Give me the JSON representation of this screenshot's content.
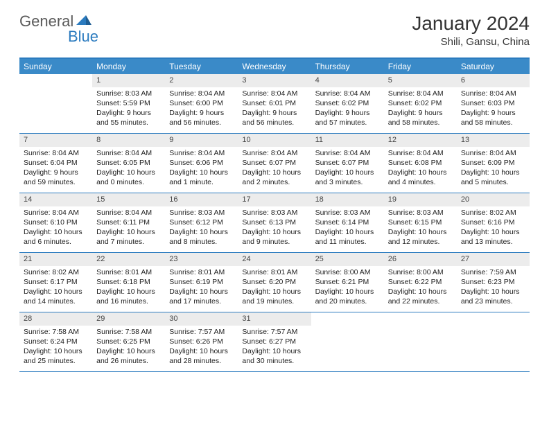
{
  "logo": {
    "general": "General",
    "blue": "Blue"
  },
  "title": "January 2024",
  "location": "Shili, Gansu, China",
  "colors": {
    "header_bg": "#3a8ac8",
    "border": "#2b7bbf",
    "daynum_bg": "#ececec",
    "text": "#222222",
    "logo_gray": "#5a5a5a",
    "logo_blue": "#2b7bbf"
  },
  "days_of_week": [
    "Sunday",
    "Monday",
    "Tuesday",
    "Wednesday",
    "Thursday",
    "Friday",
    "Saturday"
  ],
  "weeks": [
    [
      {
        "n": "",
        "sunrise": "",
        "sunset": "",
        "daylight": ""
      },
      {
        "n": "1",
        "sunrise": "Sunrise: 8:03 AM",
        "sunset": "Sunset: 5:59 PM",
        "daylight": "Daylight: 9 hours and 55 minutes."
      },
      {
        "n": "2",
        "sunrise": "Sunrise: 8:04 AM",
        "sunset": "Sunset: 6:00 PM",
        "daylight": "Daylight: 9 hours and 56 minutes."
      },
      {
        "n": "3",
        "sunrise": "Sunrise: 8:04 AM",
        "sunset": "Sunset: 6:01 PM",
        "daylight": "Daylight: 9 hours and 56 minutes."
      },
      {
        "n": "4",
        "sunrise": "Sunrise: 8:04 AM",
        "sunset": "Sunset: 6:02 PM",
        "daylight": "Daylight: 9 hours and 57 minutes."
      },
      {
        "n": "5",
        "sunrise": "Sunrise: 8:04 AM",
        "sunset": "Sunset: 6:02 PM",
        "daylight": "Daylight: 9 hours and 58 minutes."
      },
      {
        "n": "6",
        "sunrise": "Sunrise: 8:04 AM",
        "sunset": "Sunset: 6:03 PM",
        "daylight": "Daylight: 9 hours and 58 minutes."
      }
    ],
    [
      {
        "n": "7",
        "sunrise": "Sunrise: 8:04 AM",
        "sunset": "Sunset: 6:04 PM",
        "daylight": "Daylight: 9 hours and 59 minutes."
      },
      {
        "n": "8",
        "sunrise": "Sunrise: 8:04 AM",
        "sunset": "Sunset: 6:05 PM",
        "daylight": "Daylight: 10 hours and 0 minutes."
      },
      {
        "n": "9",
        "sunrise": "Sunrise: 8:04 AM",
        "sunset": "Sunset: 6:06 PM",
        "daylight": "Daylight: 10 hours and 1 minute."
      },
      {
        "n": "10",
        "sunrise": "Sunrise: 8:04 AM",
        "sunset": "Sunset: 6:07 PM",
        "daylight": "Daylight: 10 hours and 2 minutes."
      },
      {
        "n": "11",
        "sunrise": "Sunrise: 8:04 AM",
        "sunset": "Sunset: 6:07 PM",
        "daylight": "Daylight: 10 hours and 3 minutes."
      },
      {
        "n": "12",
        "sunrise": "Sunrise: 8:04 AM",
        "sunset": "Sunset: 6:08 PM",
        "daylight": "Daylight: 10 hours and 4 minutes."
      },
      {
        "n": "13",
        "sunrise": "Sunrise: 8:04 AM",
        "sunset": "Sunset: 6:09 PM",
        "daylight": "Daylight: 10 hours and 5 minutes."
      }
    ],
    [
      {
        "n": "14",
        "sunrise": "Sunrise: 8:04 AM",
        "sunset": "Sunset: 6:10 PM",
        "daylight": "Daylight: 10 hours and 6 minutes."
      },
      {
        "n": "15",
        "sunrise": "Sunrise: 8:04 AM",
        "sunset": "Sunset: 6:11 PM",
        "daylight": "Daylight: 10 hours and 7 minutes."
      },
      {
        "n": "16",
        "sunrise": "Sunrise: 8:03 AM",
        "sunset": "Sunset: 6:12 PM",
        "daylight": "Daylight: 10 hours and 8 minutes."
      },
      {
        "n": "17",
        "sunrise": "Sunrise: 8:03 AM",
        "sunset": "Sunset: 6:13 PM",
        "daylight": "Daylight: 10 hours and 9 minutes."
      },
      {
        "n": "18",
        "sunrise": "Sunrise: 8:03 AM",
        "sunset": "Sunset: 6:14 PM",
        "daylight": "Daylight: 10 hours and 11 minutes."
      },
      {
        "n": "19",
        "sunrise": "Sunrise: 8:03 AM",
        "sunset": "Sunset: 6:15 PM",
        "daylight": "Daylight: 10 hours and 12 minutes."
      },
      {
        "n": "20",
        "sunrise": "Sunrise: 8:02 AM",
        "sunset": "Sunset: 6:16 PM",
        "daylight": "Daylight: 10 hours and 13 minutes."
      }
    ],
    [
      {
        "n": "21",
        "sunrise": "Sunrise: 8:02 AM",
        "sunset": "Sunset: 6:17 PM",
        "daylight": "Daylight: 10 hours and 14 minutes."
      },
      {
        "n": "22",
        "sunrise": "Sunrise: 8:01 AM",
        "sunset": "Sunset: 6:18 PM",
        "daylight": "Daylight: 10 hours and 16 minutes."
      },
      {
        "n": "23",
        "sunrise": "Sunrise: 8:01 AM",
        "sunset": "Sunset: 6:19 PM",
        "daylight": "Daylight: 10 hours and 17 minutes."
      },
      {
        "n": "24",
        "sunrise": "Sunrise: 8:01 AM",
        "sunset": "Sunset: 6:20 PM",
        "daylight": "Daylight: 10 hours and 19 minutes."
      },
      {
        "n": "25",
        "sunrise": "Sunrise: 8:00 AM",
        "sunset": "Sunset: 6:21 PM",
        "daylight": "Daylight: 10 hours and 20 minutes."
      },
      {
        "n": "26",
        "sunrise": "Sunrise: 8:00 AM",
        "sunset": "Sunset: 6:22 PM",
        "daylight": "Daylight: 10 hours and 22 minutes."
      },
      {
        "n": "27",
        "sunrise": "Sunrise: 7:59 AM",
        "sunset": "Sunset: 6:23 PM",
        "daylight": "Daylight: 10 hours and 23 minutes."
      }
    ],
    [
      {
        "n": "28",
        "sunrise": "Sunrise: 7:58 AM",
        "sunset": "Sunset: 6:24 PM",
        "daylight": "Daylight: 10 hours and 25 minutes."
      },
      {
        "n": "29",
        "sunrise": "Sunrise: 7:58 AM",
        "sunset": "Sunset: 6:25 PM",
        "daylight": "Daylight: 10 hours and 26 minutes."
      },
      {
        "n": "30",
        "sunrise": "Sunrise: 7:57 AM",
        "sunset": "Sunset: 6:26 PM",
        "daylight": "Daylight: 10 hours and 28 minutes."
      },
      {
        "n": "31",
        "sunrise": "Sunrise: 7:57 AM",
        "sunset": "Sunset: 6:27 PM",
        "daylight": "Daylight: 10 hours and 30 minutes."
      },
      {
        "n": "",
        "sunrise": "",
        "sunset": "",
        "daylight": ""
      },
      {
        "n": "",
        "sunrise": "",
        "sunset": "",
        "daylight": ""
      },
      {
        "n": "",
        "sunrise": "",
        "sunset": "",
        "daylight": ""
      }
    ]
  ]
}
